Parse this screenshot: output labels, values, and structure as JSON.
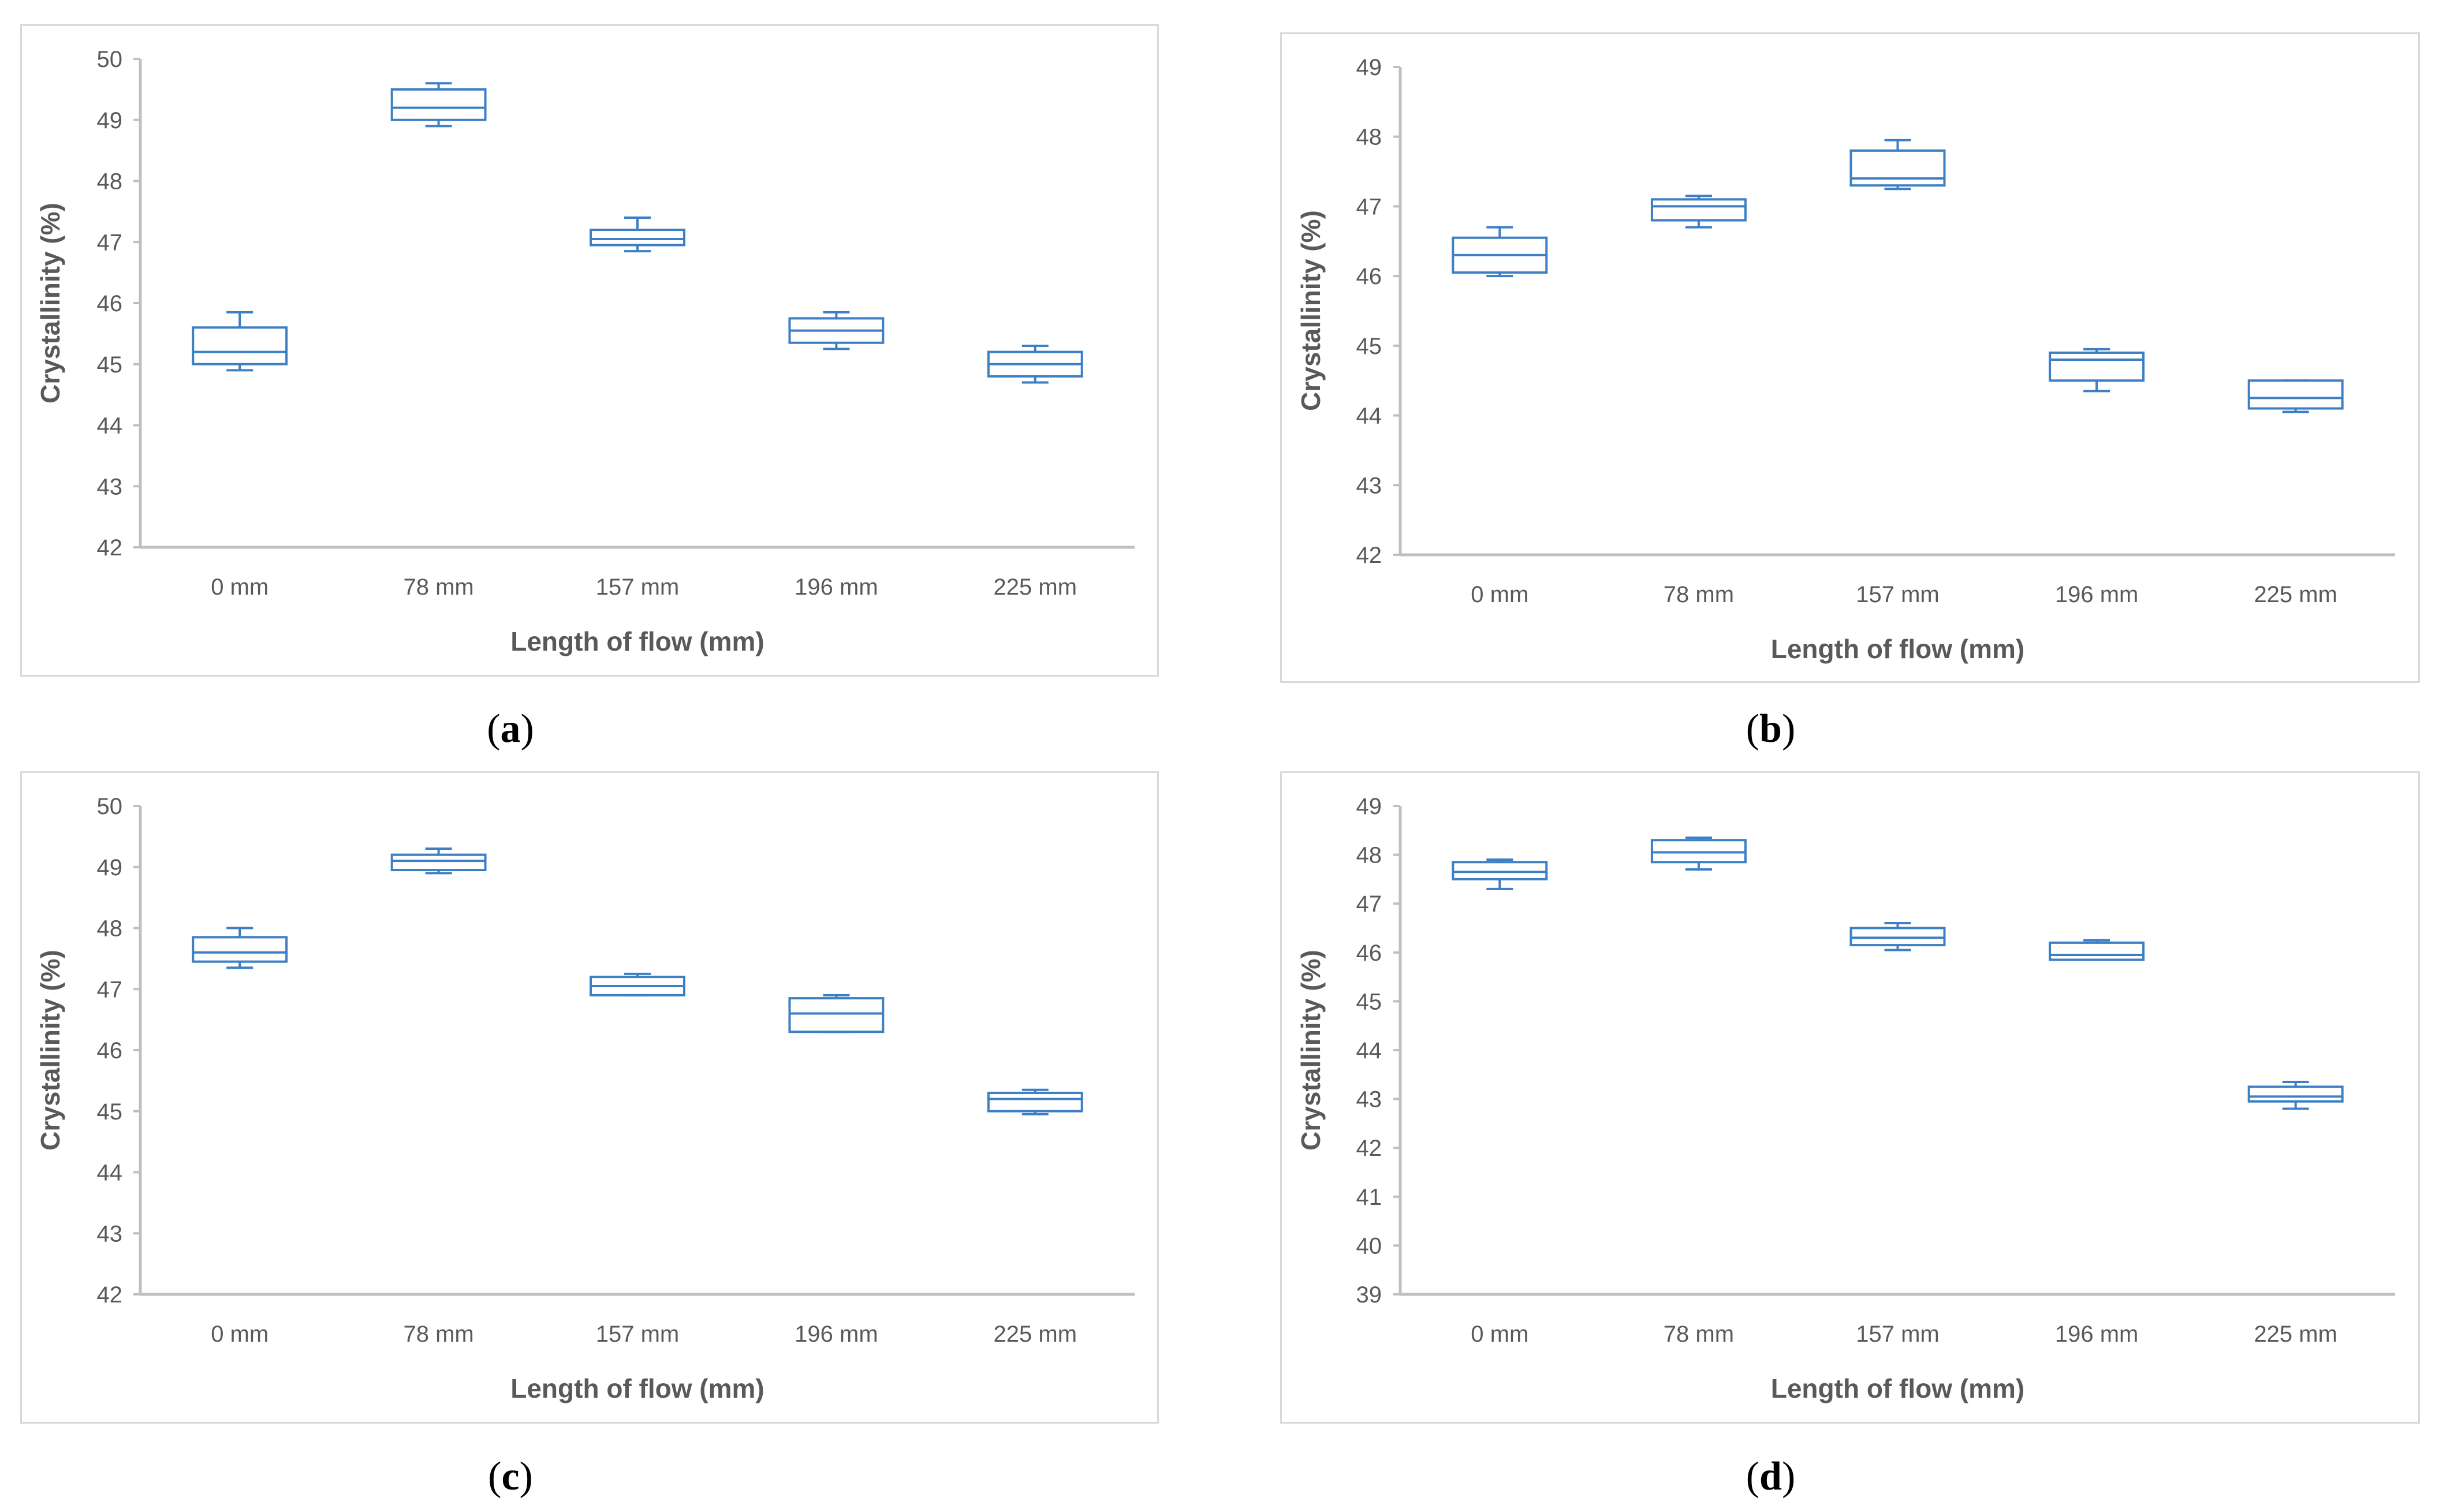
{
  "chart_data": [
    {
      "panel": "(a)",
      "caption_letter": "a",
      "type": "box",
      "xlabel": "Length of flow (mm)",
      "ylabel": "Crystallinity (%)",
      "ylim": [
        42,
        50
      ],
      "yticks": [
        "42",
        "43",
        "44",
        "45",
        "46",
        "47",
        "48",
        "49",
        "50"
      ],
      "categories": [
        "0 mm",
        "78 mm",
        "157 mm",
        "196 mm",
        "225 mm"
      ],
      "boxes": [
        {
          "min": 44.9,
          "q1": 45.0,
          "median": 45.2,
          "q3": 45.6,
          "max": 45.85
        },
        {
          "min": 48.9,
          "q1": 49.0,
          "median": 49.2,
          "q3": 49.5,
          "max": 49.6
        },
        {
          "min": 46.85,
          "q1": 46.95,
          "median": 47.05,
          "q3": 47.2,
          "max": 47.4
        },
        {
          "min": 45.25,
          "q1": 45.35,
          "median": 45.55,
          "q3": 45.75,
          "max": 45.85
        },
        {
          "min": 44.7,
          "q1": 44.8,
          "median": 45.0,
          "q3": 45.2,
          "max": 45.3
        }
      ],
      "color": "#3c7fc4"
    },
    {
      "panel": "(b)",
      "caption_letter": "b",
      "type": "box",
      "xlabel": "Length of flow (mm)",
      "ylabel": "Crystallinity (%)",
      "ylim": [
        42,
        49
      ],
      "yticks": [
        "42",
        "43",
        "44",
        "45",
        "46",
        "47",
        "48",
        "49"
      ],
      "categories": [
        "0 mm",
        "78 mm",
        "157 mm",
        "196 mm",
        "225 mm"
      ],
      "boxes": [
        {
          "min": 46.0,
          "q1": 46.05,
          "median": 46.3,
          "q3": 46.55,
          "max": 46.7
        },
        {
          "min": 46.7,
          "q1": 46.8,
          "median": 47.0,
          "q3": 47.1,
          "max": 47.15
        },
        {
          "min": 47.25,
          "q1": 47.3,
          "median": 47.4,
          "q3": 47.8,
          "max": 47.95
        },
        {
          "min": 44.35,
          "q1": 44.5,
          "median": 44.8,
          "q3": 44.9,
          "max": 44.95
        },
        {
          "min": 44.05,
          "q1": 44.1,
          "median": 44.25,
          "q3": 44.5,
          "max": 44.5
        }
      ],
      "color": "#3c7fc4"
    },
    {
      "panel": "(c)",
      "caption_letter": "c",
      "type": "box",
      "xlabel": "Length of flow (mm)",
      "ylabel": "Crystallinity (%)",
      "ylim": [
        42,
        50
      ],
      "yticks": [
        "42",
        "43",
        "44",
        "45",
        "46",
        "47",
        "48",
        "49",
        "50"
      ],
      "categories": [
        "0 mm",
        "78 mm",
        "157 mm",
        "196 mm",
        "225 mm"
      ],
      "boxes": [
        {
          "min": 47.35,
          "q1": 47.45,
          "median": 47.6,
          "q3": 47.85,
          "max": 48.0
        },
        {
          "min": 48.9,
          "q1": 48.95,
          "median": 49.1,
          "q3": 49.2,
          "max": 49.3
        },
        {
          "min": 46.9,
          "q1": 46.9,
          "median": 47.05,
          "q3": 47.2,
          "max": 47.25
        },
        {
          "min": 46.3,
          "q1": 46.3,
          "median": 46.6,
          "q3": 46.85,
          "max": 46.9
        },
        {
          "min": 44.95,
          "q1": 45.0,
          "median": 45.2,
          "q3": 45.3,
          "max": 45.35
        }
      ],
      "color": "#3c7fc4"
    },
    {
      "panel": "(d)",
      "caption_letter": "d",
      "type": "box",
      "xlabel": "Length of flow (mm)",
      "ylabel": "Crystallinity (%)",
      "ylim": [
        39,
        49
      ],
      "yticks": [
        "39",
        "40",
        "41",
        "42",
        "43",
        "44",
        "45",
        "46",
        "47",
        "48",
        "49"
      ],
      "categories": [
        "0 mm",
        "78 mm",
        "157 mm",
        "196 mm",
        "225 mm"
      ],
      "boxes": [
        {
          "min": 47.3,
          "q1": 47.5,
          "median": 47.65,
          "q3": 47.85,
          "max": 47.9
        },
        {
          "min": 47.7,
          "q1": 47.85,
          "median": 48.05,
          "q3": 48.3,
          "max": 48.35
        },
        {
          "min": 46.05,
          "q1": 46.15,
          "median": 46.3,
          "q3": 46.5,
          "max": 46.6
        },
        {
          "min": 45.85,
          "q1": 45.85,
          "median": 45.95,
          "q3": 46.2,
          "max": 46.25
        },
        {
          "min": 42.8,
          "q1": 42.95,
          "median": 43.05,
          "q3": 43.25,
          "max": 43.35
        }
      ],
      "color": "#3c7fc4"
    }
  ]
}
